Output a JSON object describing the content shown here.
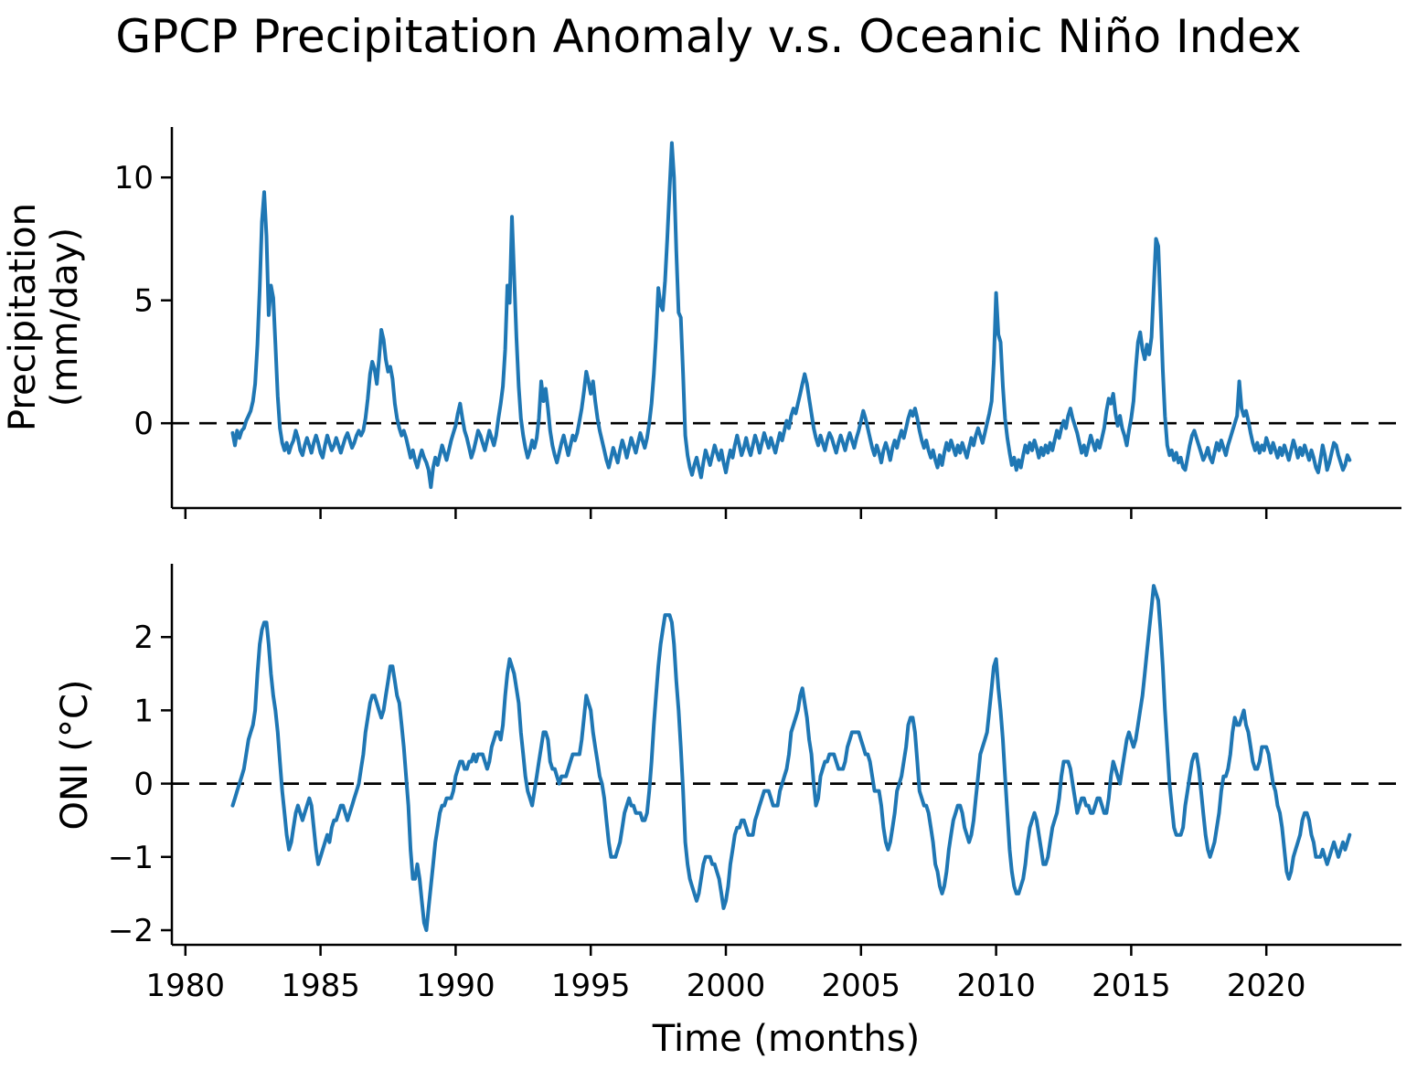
{
  "title": "GPCP Precipitation Anomaly v.s. Oceanic Niño Index",
  "colors": {
    "line": "#1f77b4",
    "zero_line": "#000000",
    "axis": "#000000",
    "background": "#ffffff"
  },
  "chart_data": [
    {
      "type": "line",
      "panel": "precip",
      "ylabel_lines": [
        "Precipitation",
        "(mm/day)"
      ],
      "ytick_values": [
        0,
        5,
        10
      ],
      "ytick_labels": [
        "0",
        "5",
        "10"
      ],
      "ylim": [
        -3.45,
        12.05
      ],
      "xlim": [
        1979.5,
        2025.0
      ],
      "xticks": [
        1980,
        1985,
        1990,
        1995,
        2000,
        2005,
        2010,
        2015,
        2020
      ],
      "xtick_labels": [
        "1980",
        "1985",
        "1990",
        "1995",
        "2000",
        "2005",
        "2010",
        "2015",
        "2020"
      ],
      "zero_line": true,
      "grid": false,
      "legend": "none",
      "x_start": 1981.75,
      "x_step_months": 1,
      "values": [
        -0.4,
        -0.9,
        -0.3,
        -0.6,
        -0.3,
        -0.2,
        0.1,
        0.3,
        0.5,
        0.9,
        1.6,
        3.2,
        5.5,
        8.2,
        9.4,
        7.6,
        4.4,
        5.6,
        5.1,
        3.2,
        1.1,
        -0.2,
        -0.8,
        -1.1,
        -0.8,
        -1.2,
        -0.9,
        -0.7,
        -0.3,
        -0.6,
        -1.1,
        -1.3,
        -0.9,
        -0.6,
        -0.9,
        -1.2,
        -0.8,
        -0.5,
        -0.8,
        -1.2,
        -1.4,
        -0.9,
        -0.5,
        -0.8,
        -1.1,
        -0.9,
        -0.6,
        -0.9,
        -1.2,
        -0.9,
        -0.6,
        -0.4,
        -0.7,
        -1.0,
        -0.8,
        -0.5,
        -0.3,
        -0.5,
        -0.3,
        0.2,
        1.0,
        2.0,
        2.5,
        2.2,
        1.6,
        2.6,
        3.8,
        3.4,
        2.6,
        2.1,
        2.3,
        1.8,
        0.8,
        0.2,
        -0.2,
        -0.5,
        -0.3,
        -0.6,
        -1.0,
        -1.4,
        -1.1,
        -1.5,
        -1.8,
        -1.4,
        -1.1,
        -1.4,
        -1.6,
        -1.9,
        -2.6,
        -1.8,
        -1.4,
        -1.7,
        -1.3,
        -0.9,
        -1.2,
        -1.5,
        -1.1,
        -0.7,
        -0.4,
        -0.1,
        0.4,
        0.8,
        0.2,
        -0.3,
        -0.6,
        -1.0,
        -1.4,
        -1.1,
        -0.7,
        -0.3,
        -0.5,
        -0.8,
        -1.1,
        -0.7,
        -0.3,
        -0.6,
        -0.9,
        -0.5,
        0.2,
        0.8,
        1.5,
        3.0,
        5.6,
        4.9,
        8.4,
        6.0,
        3.5,
        1.5,
        0.2,
        -0.5,
        -1.0,
        -1.4,
        -1.1,
        -0.7,
        -1.0,
        -0.6,
        0.2,
        1.7,
        0.9,
        1.4,
        0.6,
        -0.3,
        -0.9,
        -1.3,
        -1.6,
        -1.2,
        -0.8,
        -0.5,
        -0.9,
        -1.3,
        -0.9,
        -0.5,
        -0.7,
        -0.4,
        0.1,
        0.6,
        1.3,
        2.1,
        1.7,
        1.2,
        1.7,
        0.9,
        0.2,
        -0.3,
        -0.7,
        -1.1,
        -1.5,
        -1.8,
        -1.4,
        -1.0,
        -1.3,
        -1.6,
        -1.1,
        -0.7,
        -1.0,
        -1.4,
        -1.0,
        -0.6,
        -0.9,
        -1.2,
        -0.8,
        -0.4,
        -0.7,
        -1.0,
        -0.6,
        0.0,
        0.8,
        2.0,
        3.5,
        5.5,
        4.8,
        4.6,
        5.8,
        7.5,
        9.5,
        11.4,
        10.0,
        7.0,
        4.5,
        4.3,
        2.0,
        -0.5,
        -1.3,
        -1.8,
        -2.1,
        -1.7,
        -1.4,
        -1.8,
        -2.2,
        -1.6,
        -1.1,
        -1.4,
        -1.7,
        -1.3,
        -0.9,
        -1.2,
        -1.5,
        -1.1,
        -1.6,
        -2.0,
        -1.5,
        -1.1,
        -1.4,
        -0.9,
        -0.5,
        -0.9,
        -1.3,
        -1.0,
        -0.6,
        -1.0,
        -1.3,
        -0.9,
        -0.5,
        -0.8,
        -1.2,
        -0.8,
        -0.4,
        -0.7,
        -1.0,
        -0.6,
        -0.9,
        -1.2,
        -0.8,
        -0.4,
        -0.7,
        -0.3,
        0.1,
        -0.2,
        0.3,
        0.6,
        0.4,
        0.8,
        1.2,
        1.6,
        2.0,
        1.6,
        1.0,
        0.4,
        -0.2,
        -0.6,
        -0.9,
        -0.5,
        -0.8,
        -1.1,
        -0.7,
        -0.4,
        -0.6,
        -0.9,
        -1.2,
        -0.8,
        -0.5,
        -0.8,
        -1.1,
        -0.7,
        -0.4,
        -0.7,
        -1.0,
        -0.6,
        -0.3,
        0.1,
        0.5,
        0.2,
        -0.2,
        -0.6,
        -1.0,
        -1.3,
        -0.9,
        -1.2,
        -1.6,
        -1.1,
        -0.8,
        -1.1,
        -1.5,
        -1.0,
        -0.7,
        -1.0,
        -0.6,
        -0.3,
        -0.6,
        -0.2,
        0.2,
        0.5,
        0.3,
        0.6,
        0.2,
        -0.3,
        -0.7,
        -1.0,
        -0.7,
        -1.1,
        -1.4,
        -1.1,
        -1.5,
        -1.8,
        -1.3,
        -1.7,
        -1.2,
        -0.8,
        -1.1,
        -0.7,
        -1.0,
        -1.3,
        -0.9,
        -1.2,
        -0.8,
        -1.1,
        -1.4,
        -1.0,
        -0.6,
        -0.9,
        -0.5,
        -0.2,
        -0.5,
        -0.8,
        -0.4,
        0.0,
        0.4,
        0.9,
        2.5,
        5.3,
        3.6,
        3.3,
        1.5,
        0.2,
        -0.6,
        -1.2,
        -1.7,
        -1.4,
        -1.9,
        -1.5,
        -1.8,
        -1.3,
        -0.9,
        -1.2,
        -0.8,
        -1.1,
        -0.7,
        -1.0,
        -1.4,
        -1.0,
        -1.3,
        -0.9,
        -1.2,
        -0.8,
        -1.1,
        -0.7,
        -0.3,
        -0.6,
        -0.2,
        0.1,
        -0.2,
        0.3,
        0.6,
        0.2,
        -0.1,
        -0.4,
        -0.8,
        -1.2,
        -0.9,
        -1.3,
        -0.9,
        -0.5,
        -0.8,
        -1.1,
        -0.7,
        -1.0,
        -0.6,
        -0.2,
        0.5,
        1.0,
        0.8,
        1.2,
        0.4,
        -0.1,
        0.3,
        -0.2,
        -0.5,
        -0.9,
        -0.3,
        0.2,
        0.9,
        2.2,
        3.3,
        3.7,
        3.0,
        2.6,
        3.2,
        2.8,
        3.5,
        5.5,
        7.5,
        7.2,
        4.8,
        2.2,
        0.3,
        -0.9,
        -1.3,
        -1.1,
        -1.5,
        -1.2,
        -1.6,
        -1.4,
        -1.8,
        -1.9,
        -1.4,
        -0.9,
        -0.5,
        -0.3,
        -0.6,
        -0.9,
        -1.2,
        -1.5,
        -1.3,
        -1.0,
        -1.4,
        -1.6,
        -1.2,
        -0.8,
        -1.1,
        -0.7,
        -1.0,
        -1.3,
        -0.9,
        -0.6,
        -0.3,
        0.0,
        0.3,
        1.7,
        0.6,
        0.3,
        0.5,
        0.1,
        -0.4,
        -0.8,
        -1.1,
        -0.8,
        -1.2,
        -0.9,
        -1.1,
        -0.6,
        -0.9,
        -1.2,
        -0.8,
        -1.1,
        -1.4,
        -1.0,
        -1.3,
        -0.9,
        -1.2,
        -1.5,
        -1.1,
        -0.7,
        -1.0,
        -1.4,
        -1.0,
        -1.3,
        -0.9,
        -1.2,
        -1.5,
        -1.1,
        -1.4,
        -1.8,
        -2.0,
        -1.5,
        -0.9,
        -1.3,
        -1.9,
        -1.6,
        -1.2,
        -0.8,
        -0.9,
        -1.3,
        -1.6,
        -1.9,
        -1.7,
        -1.3,
        -1.5
      ]
    },
    {
      "type": "line",
      "panel": "oni",
      "ylabel_lines": [
        "ONI (°C)"
      ],
      "xlabel": "Time (months)",
      "ytick_values": [
        2,
        1,
        0,
        -1,
        -2
      ],
      "ytick_labels": [
        "2",
        "1",
        "0",
        "−1",
        "−2"
      ],
      "ylim": [
        -2.2,
        3.0
      ],
      "xlim": [
        1979.5,
        2025.0
      ],
      "xticks": [
        1980,
        1985,
        1990,
        1995,
        2000,
        2005,
        2010,
        2015,
        2020
      ],
      "xtick_labels": [
        "1980",
        "1985",
        "1990",
        "1995",
        "2000",
        "2005",
        "2010",
        "2015",
        "2020"
      ],
      "zero_line": true,
      "grid": false,
      "legend": "none",
      "x_start": 1981.75,
      "x_step_months": 1,
      "values": [
        -0.3,
        -0.2,
        -0.1,
        0.0,
        0.1,
        0.2,
        0.4,
        0.6,
        0.7,
        0.8,
        1.0,
        1.5,
        1.9,
        2.1,
        2.2,
        2.2,
        1.9,
        1.5,
        1.2,
        1.0,
        0.7,
        0.3,
        -0.1,
        -0.4,
        -0.7,
        -0.9,
        -0.8,
        -0.6,
        -0.4,
        -0.3,
        -0.4,
        -0.5,
        -0.4,
        -0.3,
        -0.2,
        -0.3,
        -0.6,
        -0.9,
        -1.1,
        -1.0,
        -0.9,
        -0.8,
        -0.7,
        -0.8,
        -0.6,
        -0.5,
        -0.5,
        -0.4,
        -0.3,
        -0.3,
        -0.4,
        -0.5,
        -0.4,
        -0.3,
        -0.2,
        -0.1,
        0.0,
        0.2,
        0.4,
        0.7,
        0.9,
        1.1,
        1.2,
        1.2,
        1.1,
        1.0,
        0.9,
        1.0,
        1.2,
        1.4,
        1.6,
        1.6,
        1.4,
        1.2,
        1.1,
        0.8,
        0.5,
        0.1,
        -0.3,
        -0.9,
        -1.3,
        -1.3,
        -1.1,
        -1.3,
        -1.6,
        -1.9,
        -2.0,
        -1.7,
        -1.4,
        -1.1,
        -0.8,
        -0.6,
        -0.4,
        -0.3,
        -0.3,
        -0.2,
        -0.2,
        -0.2,
        -0.1,
        0.1,
        0.2,
        0.3,
        0.3,
        0.2,
        0.2,
        0.3,
        0.3,
        0.4,
        0.3,
        0.4,
        0.4,
        0.4,
        0.3,
        0.2,
        0.3,
        0.5,
        0.6,
        0.7,
        0.7,
        0.6,
        0.8,
        1.2,
        1.5,
        1.7,
        1.6,
        1.5,
        1.3,
        1.1,
        0.7,
        0.4,
        0.1,
        -0.1,
        -0.2,
        -0.3,
        -0.1,
        0.1,
        0.3,
        0.5,
        0.7,
        0.7,
        0.6,
        0.3,
        0.2,
        0.2,
        0.1,
        0.0,
        0.1,
        0.1,
        0.1,
        0.2,
        0.3,
        0.4,
        0.4,
        0.4,
        0.4,
        0.6,
        0.9,
        1.2,
        1.1,
        1.0,
        0.7,
        0.5,
        0.3,
        0.1,
        0.0,
        -0.2,
        -0.5,
        -0.8,
        -1.0,
        -1.0,
        -1.0,
        -0.9,
        -0.8,
        -0.6,
        -0.4,
        -0.3,
        -0.2,
        -0.3,
        -0.3,
        -0.4,
        -0.4,
        -0.4,
        -0.5,
        -0.5,
        -0.4,
        -0.1,
        0.3,
        0.8,
        1.2,
        1.6,
        1.9,
        2.1,
        2.3,
        2.3,
        2.3,
        2.2,
        1.9,
        1.4,
        1.0,
        0.5,
        -0.1,
        -0.8,
        -1.1,
        -1.3,
        -1.4,
        -1.5,
        -1.6,
        -1.5,
        -1.3,
        -1.1,
        -1.0,
        -1.0,
        -1.0,
        -1.1,
        -1.1,
        -1.2,
        -1.3,
        -1.5,
        -1.7,
        -1.6,
        -1.4,
        -1.1,
        -0.9,
        -0.7,
        -0.6,
        -0.6,
        -0.5,
        -0.5,
        -0.6,
        -0.7,
        -0.7,
        -0.7,
        -0.5,
        -0.4,
        -0.3,
        -0.2,
        -0.1,
        -0.1,
        -0.1,
        -0.2,
        -0.3,
        -0.3,
        -0.3,
        -0.1,
        0.0,
        0.1,
        0.2,
        0.4,
        0.7,
        0.8,
        0.9,
        1.0,
        1.2,
        1.3,
        1.1,
        0.9,
        0.6,
        0.4,
        0.0,
        -0.3,
        -0.2,
        0.1,
        0.2,
        0.3,
        0.3,
        0.4,
        0.4,
        0.4,
        0.3,
        0.2,
        0.2,
        0.2,
        0.3,
        0.5,
        0.6,
        0.7,
        0.7,
        0.7,
        0.7,
        0.6,
        0.5,
        0.4,
        0.4,
        0.3,
        0.1,
        -0.1,
        -0.1,
        -0.1,
        -0.3,
        -0.6,
        -0.8,
        -0.9,
        -0.8,
        -0.6,
        -0.4,
        -0.1,
        0.0,
        0.1,
        0.3,
        0.5,
        0.8,
        0.9,
        0.9,
        0.7,
        0.3,
        -0.1,
        -0.2,
        -0.3,
        -0.3,
        -0.4,
        -0.6,
        -0.8,
        -1.1,
        -1.2,
        -1.4,
        -1.5,
        -1.4,
        -1.2,
        -0.9,
        -0.7,
        -0.5,
        -0.4,
        -0.3,
        -0.3,
        -0.4,
        -0.6,
        -0.7,
        -0.8,
        -0.7,
        -0.5,
        -0.2,
        0.1,
        0.4,
        0.5,
        0.6,
        0.7,
        1.0,
        1.3,
        1.6,
        1.7,
        1.3,
        1.0,
        0.6,
        0.1,
        -0.4,
        -0.9,
        -1.2,
        -1.4,
        -1.5,
        -1.5,
        -1.4,
        -1.3,
        -1.1,
        -0.8,
        -0.6,
        -0.5,
        -0.4,
        -0.5,
        -0.7,
        -0.9,
        -1.1,
        -1.1,
        -1.0,
        -0.8,
        -0.6,
        -0.5,
        -0.4,
        -0.2,
        0.1,
        0.3,
        0.3,
        0.3,
        0.2,
        0.0,
        -0.2,
        -0.4,
        -0.3,
        -0.2,
        -0.2,
        -0.3,
        -0.3,
        -0.4,
        -0.4,
        -0.3,
        -0.2,
        -0.2,
        -0.3,
        -0.4,
        -0.4,
        -0.2,
        0.1,
        0.3,
        0.2,
        0.1,
        0.0,
        0.2,
        0.4,
        0.6,
        0.7,
        0.6,
        0.5,
        0.6,
        0.8,
        1.0,
        1.2,
        1.5,
        1.8,
        2.1,
        2.4,
        2.7,
        2.6,
        2.5,
        2.1,
        1.6,
        1.0,
        0.5,
        0.0,
        -0.3,
        -0.6,
        -0.7,
        -0.7,
        -0.7,
        -0.6,
        -0.3,
        -0.1,
        0.1,
        0.3,
        0.4,
        0.4,
        0.2,
        -0.1,
        -0.4,
        -0.7,
        -0.9,
        -1.0,
        -0.9,
        -0.8,
        -0.6,
        -0.4,
        -0.1,
        0.1,
        0.1,
        0.2,
        0.4,
        0.7,
        0.9,
        0.8,
        0.8,
        0.9,
        1.0,
        0.8,
        0.7,
        0.5,
        0.3,
        0.2,
        0.2,
        0.3,
        0.5,
        0.5,
        0.5,
        0.4,
        0.2,
        0.0,
        -0.1,
        -0.3,
        -0.4,
        -0.6,
        -0.9,
        -1.2,
        -1.3,
        -1.2,
        -1.0,
        -0.9,
        -0.8,
        -0.7,
        -0.5,
        -0.4,
        -0.4,
        -0.5,
        -0.7,
        -0.8,
        -1.0,
        -1.0,
        -1.0,
        -0.9,
        -1.0,
        -1.1,
        -1.0,
        -0.9,
        -0.8,
        -0.9,
        -1.0,
        -0.9,
        -0.8,
        -0.9,
        -0.8,
        -0.7
      ]
    }
  ]
}
